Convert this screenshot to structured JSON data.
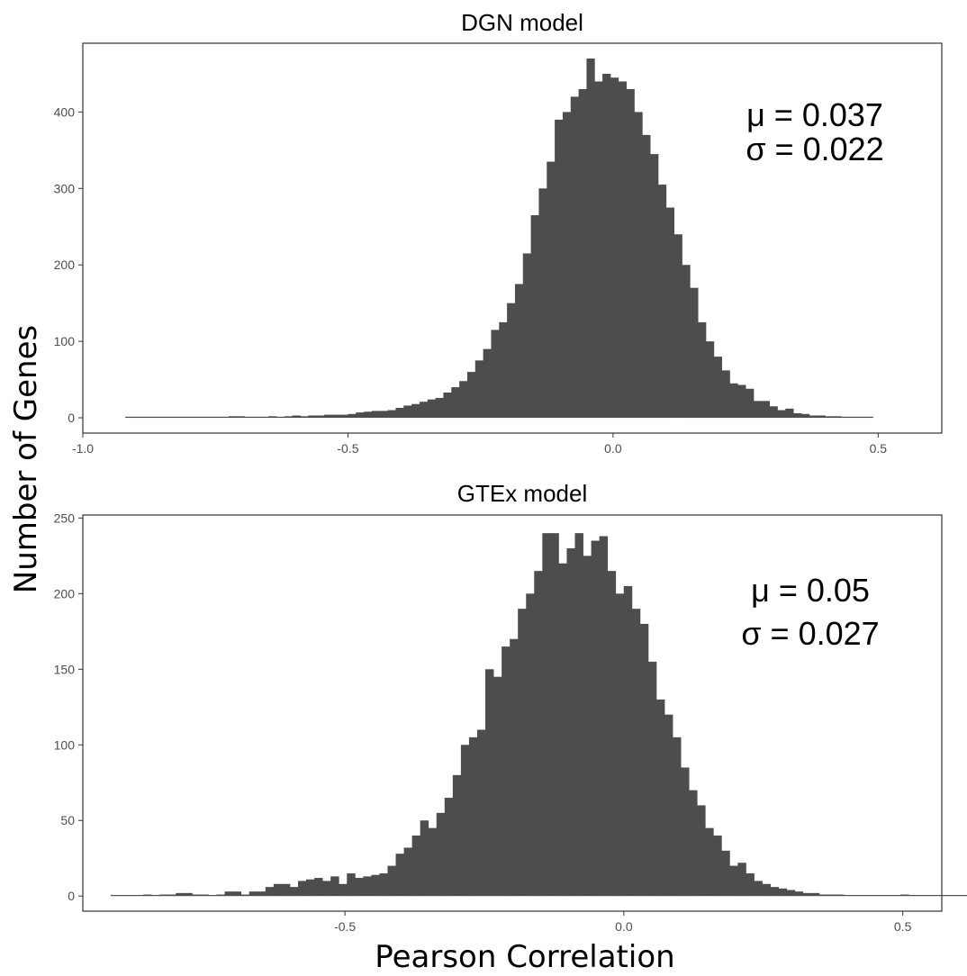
{
  "figure": {
    "ylabel": "Number of Genes",
    "xlabel": "Pearson Correlation"
  },
  "chart_data": [
    {
      "type": "bar",
      "title": "DGN model",
      "xlim": [
        -1.0,
        0.62
      ],
      "ylim": [
        -20,
        490
      ],
      "xticks": [
        -1.0,
        -0.5,
        0.0,
        0.5
      ],
      "xtick_labels": [
        "-1.0",
        "-0.5",
        "0.0",
        "0.5"
      ],
      "yticks": [
        0,
        100,
        200,
        300,
        400
      ],
      "ytick_labels": [
        "0",
        "100",
        "200",
        "300",
        "400"
      ],
      "bin_start": -0.92,
      "bin_width": 0.015,
      "values": [
        0,
        0,
        0,
        0,
        0,
        0,
        0,
        0,
        1,
        1,
        0,
        1,
        1,
        2,
        2,
        1,
        1,
        1,
        2,
        1,
        2,
        3,
        2,
        3,
        3,
        4,
        4,
        4,
        5,
        7,
        8,
        9,
        9,
        10,
        13,
        16,
        18,
        21,
        24,
        26,
        33,
        40,
        48,
        60,
        75,
        90,
        115,
        125,
        150,
        175,
        215,
        265,
        300,
        335,
        390,
        400,
        420,
        430,
        470,
        440,
        450,
        445,
        440,
        430,
        400,
        370,
        345,
        305,
        275,
        240,
        200,
        170,
        125,
        100,
        80,
        62,
        45,
        43,
        38,
        22,
        22,
        15,
        10,
        12,
        6,
        5,
        3,
        3,
        2,
        2,
        1,
        1,
        0,
        0
      ],
      "stats": {
        "mu": "μ = 0.037",
        "sigma": "σ = 0.022"
      }
    },
    {
      "type": "bar",
      "title": "GTEx model",
      "xlim": [
        -0.97,
        0.57
      ],
      "ylim": [
        -10,
        252
      ],
      "xticks": [
        -0.5,
        0.0,
        0.5
      ],
      "xtick_labels": [
        "-0.5",
        "0.0",
        "0.5"
      ],
      "yticks": [
        0,
        50,
        100,
        150,
        200,
        250
      ],
      "ytick_labels": [
        "0",
        "50",
        "100",
        "150",
        "200",
        "250"
      ],
      "bin_start": -0.92,
      "bin_width": 0.0146,
      "values": [
        0,
        0,
        0,
        0,
        1,
        0,
        1,
        1,
        2,
        2,
        1,
        1,
        0,
        1,
        3,
        3,
        1,
        3,
        3,
        6,
        8,
        8,
        6,
        10,
        11,
        12,
        10,
        13,
        8,
        15,
        12,
        13,
        14,
        15,
        20,
        28,
        32,
        40,
        50,
        45,
        55,
        65,
        80,
        100,
        105,
        110,
        150,
        145,
        165,
        170,
        190,
        200,
        215,
        240,
        240,
        220,
        230,
        240,
        225,
        235,
        238,
        215,
        200,
        205,
        190,
        180,
        155,
        130,
        120,
        105,
        85,
        70,
        60,
        45,
        40,
        30,
        20,
        22,
        15,
        10,
        8,
        6,
        5,
        4,
        3,
        2,
        2,
        1,
        1,
        1,
        0,
        0,
        0,
        0,
        0,
        0,
        0,
        1,
        0,
        0,
        0,
        0,
        0,
        0,
        0,
        0
      ],
      "stats": {
        "mu": "μ = 0.05",
        "sigma": "σ = 0.027"
      }
    }
  ]
}
